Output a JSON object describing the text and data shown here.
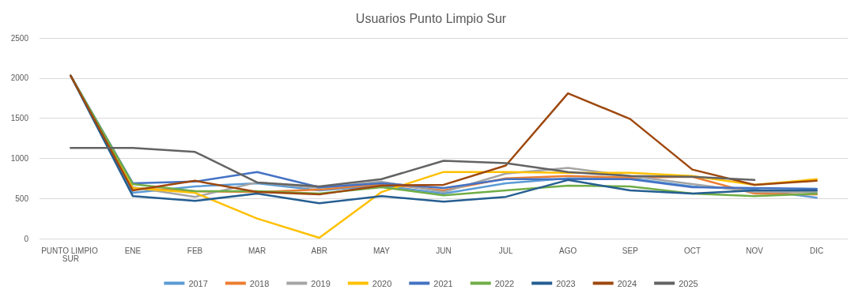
{
  "chart_data": {
    "type": "line",
    "title": "Usuarios Punto Limpio Sur",
    "categories": [
      "PUNTO LIMPIO SUR",
      "ENE",
      "FEB",
      "MAR",
      "ABR",
      "MAY",
      "JUN",
      "JUL",
      "AGO",
      "SEP",
      "OCT",
      "NOV",
      "DIC"
    ],
    "series": [
      {
        "name": "2017",
        "color": "#5b9bd5",
        "values": [
          2030,
          570,
          650,
          690,
          600,
          660,
          560,
          690,
          750,
          750,
          650,
          610,
          510
        ]
      },
      {
        "name": "2018",
        "color": "#ed7d31",
        "values": [
          2030,
          630,
          590,
          580,
          610,
          680,
          600,
          750,
          780,
          760,
          770,
          560,
          550
        ]
      },
      {
        "name": "2019",
        "color": "#a5a5a5",
        "values": [
          2030,
          640,
          520,
          700,
          630,
          710,
          580,
          810,
          880,
          780,
          680,
          580,
          580
        ]
      },
      {
        "name": "2020",
        "color": "#ffc000",
        "values": [
          2030,
          630,
          570,
          250,
          10,
          580,
          830,
          830,
          820,
          820,
          780,
          670,
          740
        ]
      },
      {
        "name": "2021",
        "color": "#4472c4",
        "values": [
          2030,
          690,
          710,
          830,
          640,
          690,
          630,
          740,
          740,
          740,
          640,
          630,
          620
        ]
      },
      {
        "name": "2022",
        "color": "#70ad47",
        "values": [
          2030,
          680,
          590,
          590,
          560,
          640,
          540,
          600,
          660,
          650,
          560,
          530,
          560
        ]
      },
      {
        "name": "2023",
        "color": "#255e91",
        "values": [
          2030,
          530,
          470,
          560,
          440,
          530,
          460,
          520,
          730,
          600,
          560,
          600,
          600
        ]
      },
      {
        "name": "2024",
        "color": "#9e480e",
        "values": [
          2030,
          600,
          720,
          580,
          550,
          660,
          670,
          910,
          1810,
          1490,
          860,
          670,
          720
        ]
      },
      {
        "name": "2025",
        "color": "#636363",
        "values": [
          1130,
          1130,
          1080,
          700,
          650,
          740,
          970,
          940,
          830,
          780,
          770,
          730,
          null
        ]
      }
    ],
    "ylim": [
      0,
      2500
    ],
    "yticks": [
      0,
      500,
      1000,
      1500,
      2000,
      2500
    ],
    "grid": "y",
    "legend": "bottom",
    "marker": "none",
    "line_style": "solid"
  }
}
